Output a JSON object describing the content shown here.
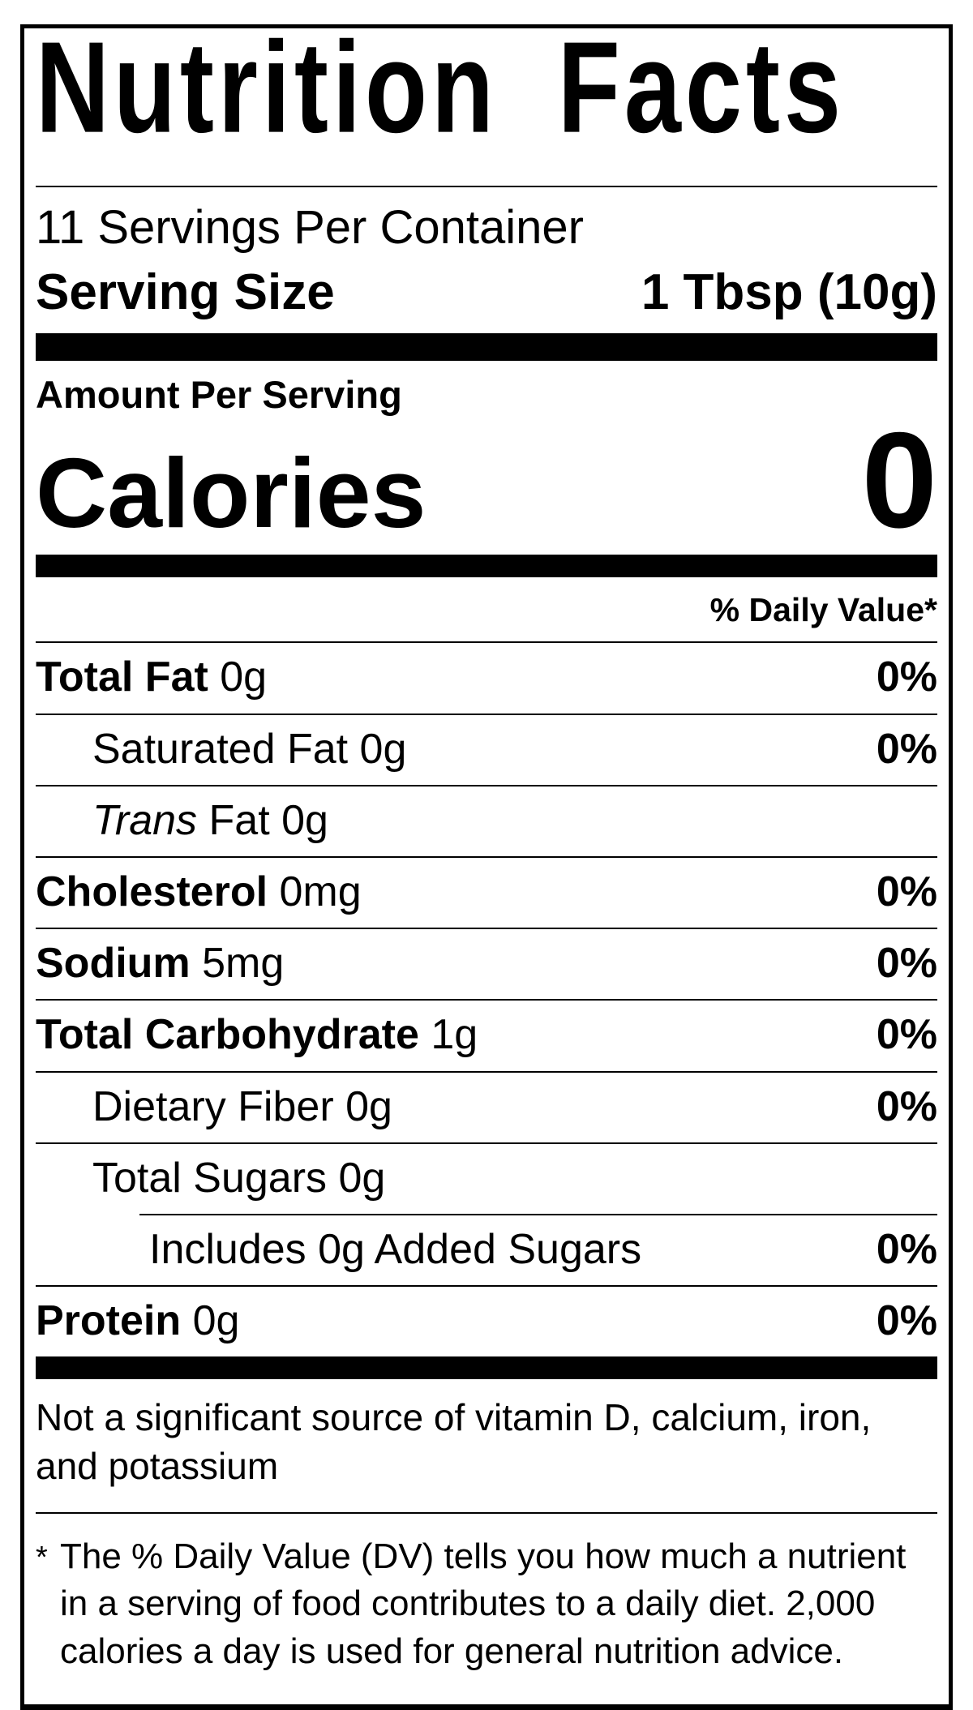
{
  "title": "Nutrition Facts",
  "servings_per_container": "11 Servings Per Container",
  "serving_size": {
    "label": "Serving Size",
    "value": "1 Tbsp (10g)"
  },
  "amount_per_serving": "Amount Per Serving",
  "calories": {
    "label": "Calories",
    "value": "0"
  },
  "daily_value_header": "% Daily Value*",
  "rows": [
    {
      "bold": "Total Fat",
      "rest": " 0g",
      "dv": "0%"
    },
    {
      "rest": "Saturated Fat 0g",
      "dv": "0%"
    },
    {
      "italic": "Trans",
      "rest": " Fat 0g",
      "dv": ""
    },
    {
      "bold": "Cholesterol",
      "rest": " 0mg",
      "dv": "0%"
    },
    {
      "bold": "Sodium",
      "rest": " 5mg",
      "dv": "0%"
    },
    {
      "bold": "Total Carbohydrate",
      "rest": " 1g",
      "dv": "0%"
    },
    {
      "rest": "Dietary Fiber 0g",
      "dv": "0%"
    },
    {
      "rest": "Total Sugars 0g",
      "dv": ""
    },
    {
      "rest": "Includes 0g Added Sugars",
      "dv": "0%"
    },
    {
      "bold": "Protein",
      "rest": " 0g",
      "dv": "0%"
    }
  ],
  "not_significant_source": "Not a significant source of vitamin D, calcium, iron, and potassium",
  "footnote": {
    "asterisk": "*",
    "text": "The % Daily Value (DV) tells you how much a nutrient in a serving of food contributes to a daily diet. 2,000 calories a day is used for general nutrition advice."
  }
}
